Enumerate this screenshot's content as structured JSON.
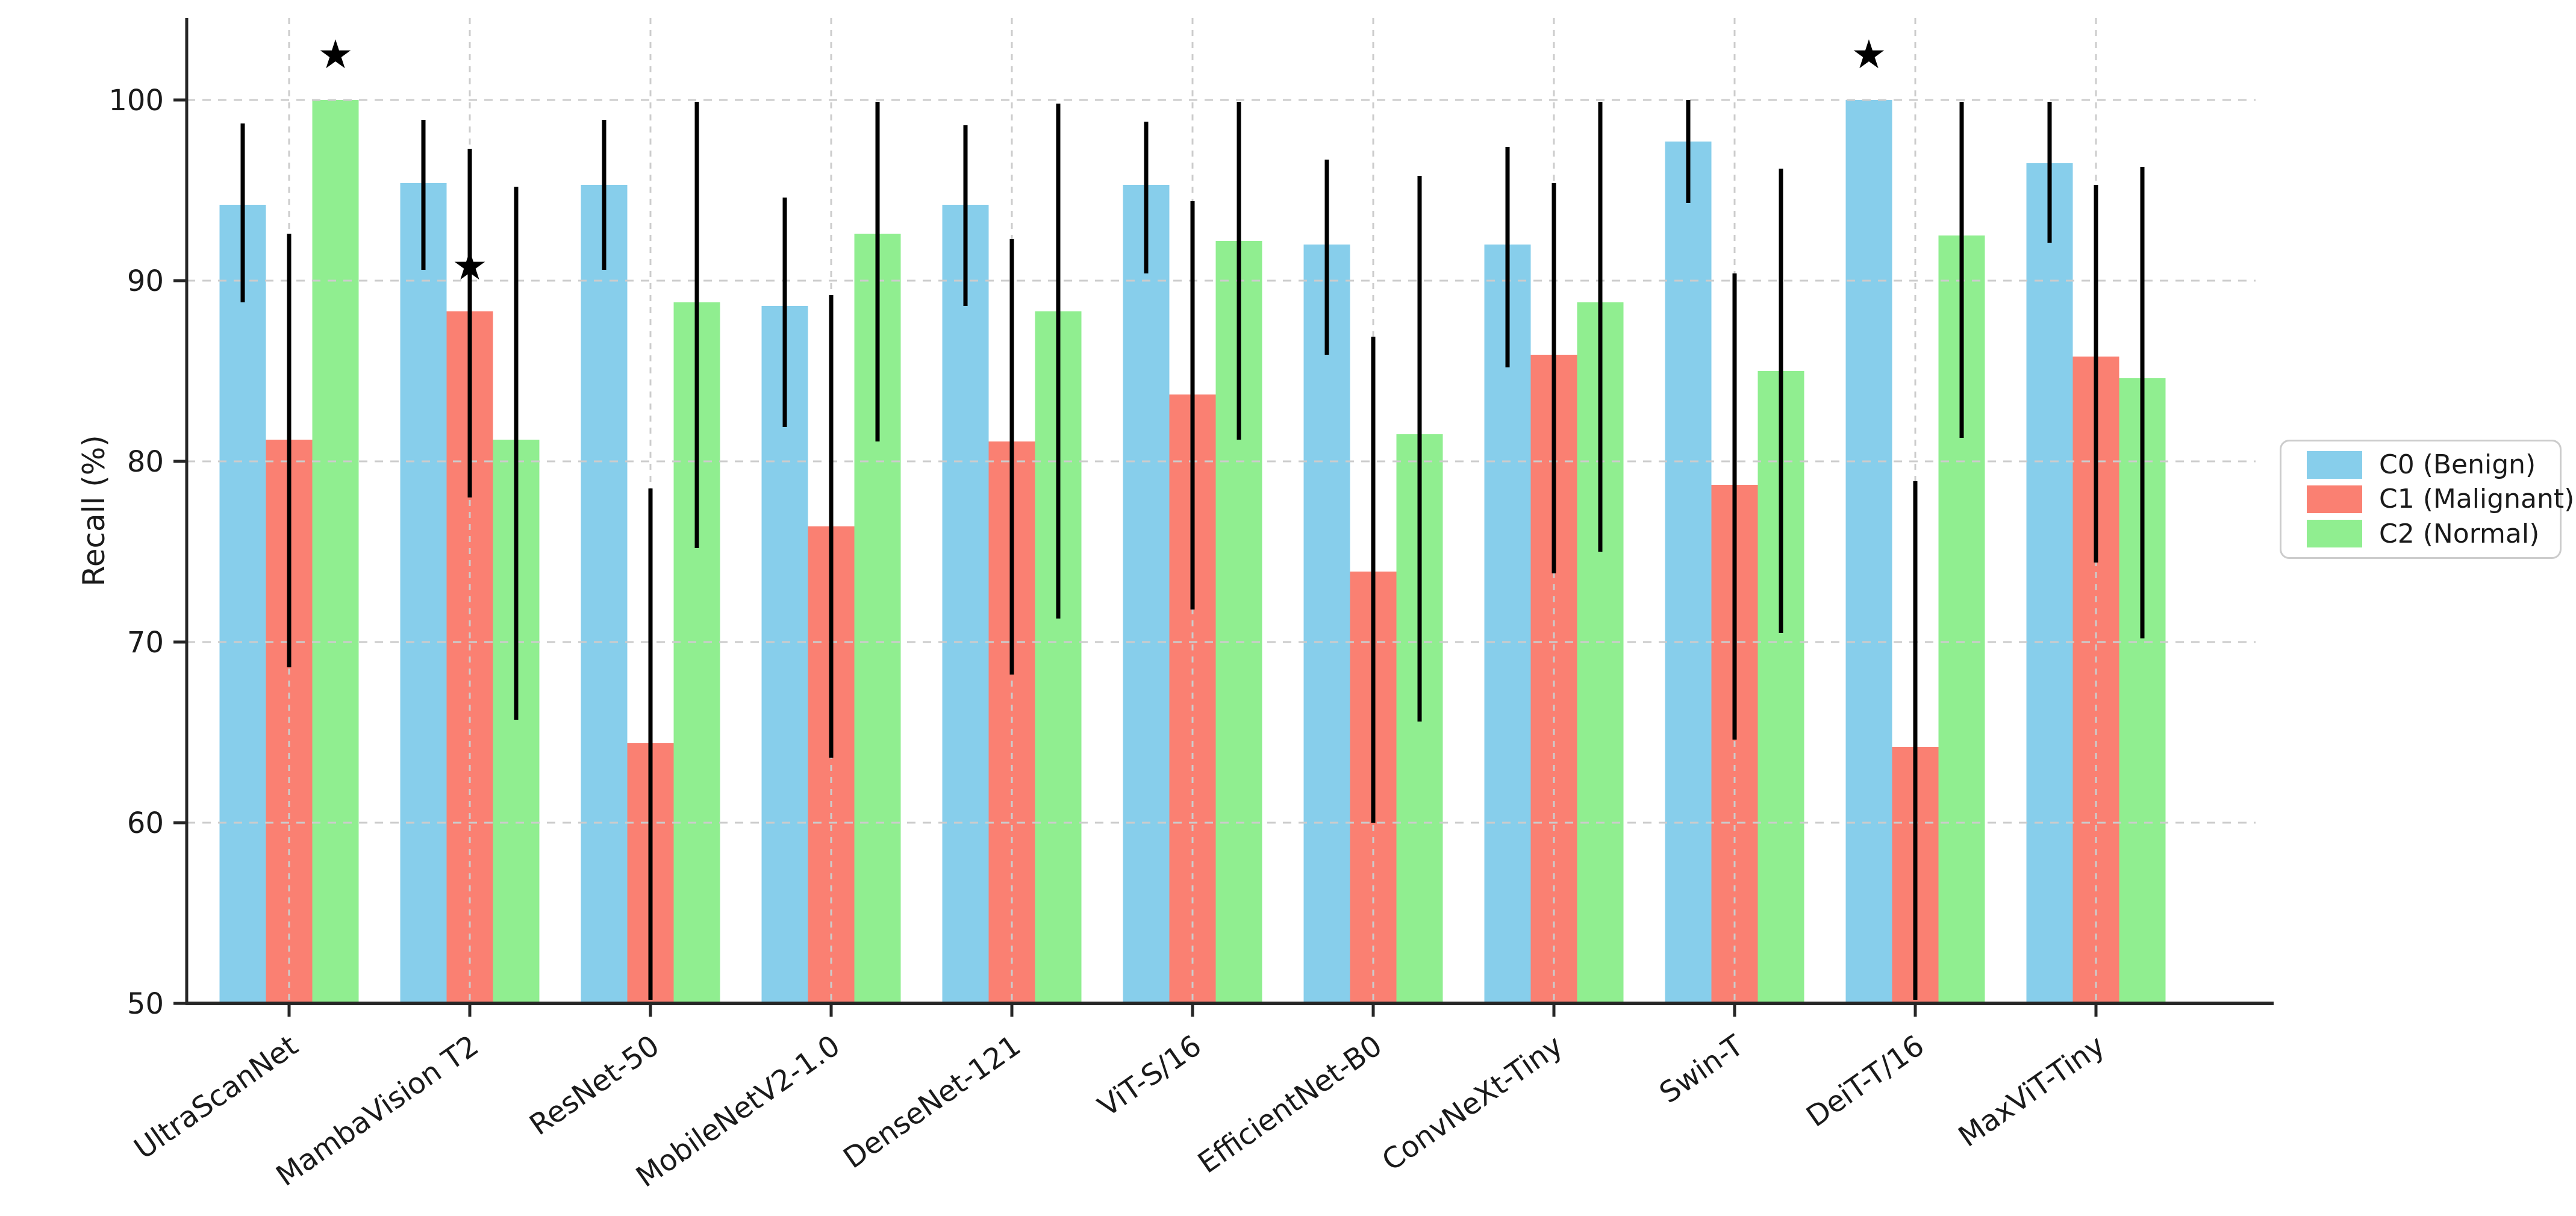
{
  "figure": {
    "background": "#ffffff",
    "ylabel": "Recall (%)",
    "star_symbol": "★"
  },
  "legend": {
    "position": "center-right-outside",
    "items": [
      {
        "label": "C0 (Benign)",
        "color": "#87CEEB"
      },
      {
        "label": "C1 (Malignant)",
        "color": "#FA8072"
      },
      {
        "label": "C2 (Normal)",
        "color": "#90EE90"
      }
    ]
  },
  "chart_data": {
    "type": "bar",
    "subtype": "grouped-vertical-with-error-bars",
    "title": "",
    "xlabel": "",
    "ylabel": "Recall (%)",
    "ylim": [
      50,
      104.5
    ],
    "yticks": [
      50,
      60,
      70,
      80,
      90,
      100
    ],
    "grid": {
      "horizontal": [
        60,
        70,
        80,
        90,
        100
      ],
      "vertical": "at each category center",
      "style": "dashed light gray"
    },
    "legend_position": "center right outside axes",
    "xtick_label_rotation_deg": 35,
    "categories": [
      "UltraScanNet",
      "MambaVision T2",
      "ResNet-50",
      "MobileNetV2-1.0",
      "DenseNet-121",
      "ViT-S/16",
      "EfficientNet-B0",
      "ConvNeXt-Tiny",
      "Swin-T",
      "DeiT-T/16",
      "MaxViT-Tiny"
    ],
    "series": [
      {
        "name": "C0 (Benign)",
        "color": "#87CEEB",
        "values": [
          94.2,
          95.4,
          95.3,
          88.6,
          94.2,
          95.3,
          92.0,
          92.0,
          97.7,
          100.0,
          96.5
        ],
        "ci_low": [
          88.8,
          90.6,
          90.6,
          81.9,
          88.6,
          90.4,
          85.9,
          85.2,
          94.3,
          100.0,
          92.1
        ],
        "ci_high": [
          98.7,
          98.9,
          98.9,
          94.6,
          98.6,
          98.8,
          96.7,
          97.4,
          100.0,
          100.0,
          99.9
        ]
      },
      {
        "name": "C1 (Malignant)",
        "color": "#FA8072",
        "values": [
          81.2,
          88.3,
          64.4,
          76.4,
          81.1,
          83.7,
          73.9,
          85.9,
          78.7,
          64.2,
          85.8
        ],
        "ci_low": [
          68.6,
          78.0,
          50.2,
          63.6,
          68.2,
          71.8,
          60.0,
          73.8,
          64.6,
          50.2,
          74.4
        ],
        "ci_high": [
          92.6,
          97.3,
          78.5,
          89.2,
          92.3,
          94.4,
          86.9,
          95.4,
          90.4,
          78.9,
          95.3
        ]
      },
      {
        "name": "C2 (Normal)",
        "color": "#90EE90",
        "values": [
          100.0,
          81.2,
          88.8,
          92.6,
          88.3,
          92.2,
          81.5,
          88.8,
          85.0,
          92.5,
          84.6
        ],
        "ci_low": [
          100.0,
          65.7,
          75.2,
          81.1,
          71.3,
          81.2,
          65.6,
          75.0,
          70.5,
          81.3,
          70.2
        ],
        "ci_high": [
          100.0,
          95.2,
          99.9,
          99.9,
          99.8,
          99.9,
          95.8,
          99.9,
          96.2,
          99.9,
          96.3
        ]
      }
    ],
    "annotations": [
      {
        "type": "star",
        "symbol": "★",
        "category": "UltraScanNet",
        "series": "C2 (Normal)",
        "y": 102.5
      },
      {
        "type": "star",
        "symbol": "★",
        "category": "MambaVision T2",
        "series": "C1 (Malignant)",
        "y": 90.8
      },
      {
        "type": "star",
        "symbol": "★",
        "category": "DeiT-T/16",
        "series": "C0 (Benign)",
        "y": 102.5
      }
    ]
  }
}
